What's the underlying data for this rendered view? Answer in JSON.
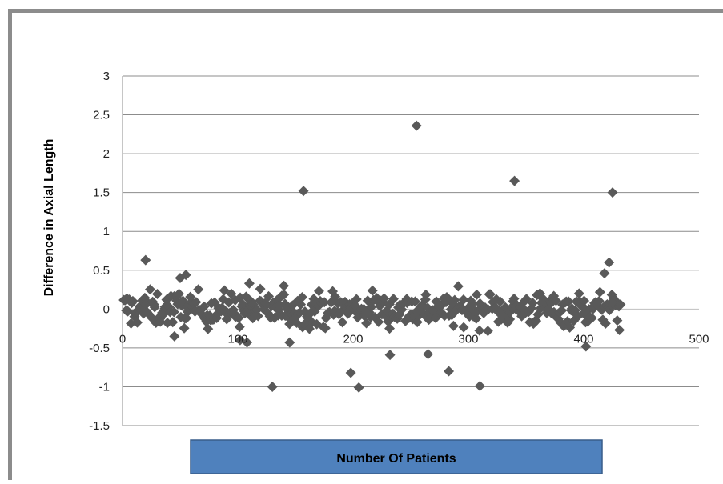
{
  "chart_data": {
    "type": "scatter",
    "title": "",
    "xlabel": "Number Of Patients",
    "ylabel": "Difference in Axial Length",
    "xlim": [
      0,
      500
    ],
    "ylim": [
      -1.5,
      3
    ],
    "xticks": [
      0,
      100,
      200,
      300,
      400,
      500
    ],
    "yticks": [
      -1.5,
      -1,
      -0.5,
      0,
      0.5,
      1,
      1.5,
      2,
      2.5,
      3
    ],
    "xtick_labels": [
      "0",
      "100",
      "200",
      "300",
      "400",
      "500"
    ],
    "ytick_labels": [
      "-1.5",
      "-1",
      "-0.5",
      "0",
      "0.5",
      "1",
      "1.5",
      "2",
      "2.5",
      "3"
    ],
    "grid": "horizontal",
    "legend": "none",
    "marker": "diamond",
    "marker_color": "#595959",
    "xlabel_box_color": "#4f81bd",
    "outliers": [
      {
        "x": 20,
        "y": 0.63
      },
      {
        "x": 50,
        "y": 0.4
      },
      {
        "x": 55,
        "y": 0.44
      },
      {
        "x": 130,
        "y": -1.0
      },
      {
        "x": 157,
        "y": 1.52
      },
      {
        "x": 198,
        "y": -0.82
      },
      {
        "x": 205,
        "y": -1.01
      },
      {
        "x": 232,
        "y": -0.59
      },
      {
        "x": 255,
        "y": 2.36
      },
      {
        "x": 265,
        "y": -0.58
      },
      {
        "x": 283,
        "y": -0.8
      },
      {
        "x": 310,
        "y": -0.99
      },
      {
        "x": 340,
        "y": 1.65
      },
      {
        "x": 402,
        "y": -0.48
      },
      {
        "x": 418,
        "y": 0.46
      },
      {
        "x": 422,
        "y": 0.6
      },
      {
        "x": 425,
        "y": 1.5
      },
      {
        "x": 431,
        "y": -0.27
      },
      {
        "x": 45,
        "y": -0.35
      },
      {
        "x": 145,
        "y": -0.43
      },
      {
        "x": 102,
        "y": -0.4
      },
      {
        "x": 108,
        "y": -0.43
      },
      {
        "x": 140,
        "y": 0.3
      },
      {
        "x": 110,
        "y": 0.33
      }
    ],
    "cluster": {
      "n_points": 430,
      "x_range": [
        1,
        432
      ],
      "y_center": 0.0,
      "y_spread": 0.2
    }
  }
}
